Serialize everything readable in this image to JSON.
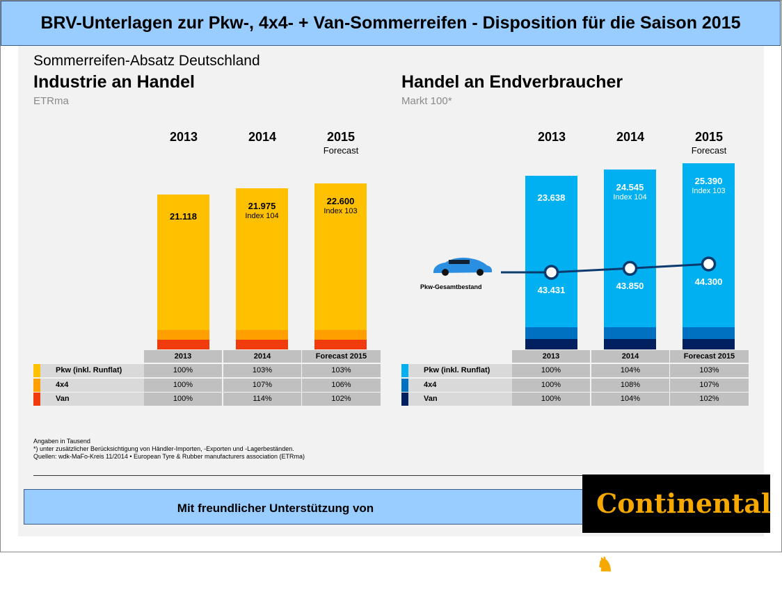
{
  "title": "BRV-Unterlagen zur Pkw-, 4x4- + Van-Sommerreifen - Disposition für die Saison 2015",
  "subtitle": "Sommerreifen-Absatz Deutschland",
  "colors": {
    "pkw_left": "#ffc000",
    "x4_left": "#ff9f00",
    "van_left": "#f03c0c",
    "pkw_right": "#00b0f0",
    "x4_right": "#0070c0",
    "van_right": "#002060",
    "line": "#0a3a6e"
  },
  "chart_data": [
    {
      "type": "bar",
      "title": "Industrie an Handel",
      "unit": "ETRma",
      "categories": [
        "2013",
        "2014",
        "2015"
      ],
      "category_notes": [
        "",
        "",
        "Forecast"
      ],
      "values": [
        21118,
        21975,
        22600
      ],
      "value_labels": [
        "21.118",
        "21.975",
        "22.600"
      ],
      "index_labels": [
        "",
        "Index 104",
        "Index 103"
      ],
      "table": {
        "headers": [
          "2013",
          "2014",
          "Forecast 2015"
        ],
        "rows": [
          {
            "label": "Pkw (inkl. Runflat)",
            "values": [
              "100%",
              "103%",
              "103%"
            ]
          },
          {
            "label": "4x4",
            "values": [
              "100%",
              "107%",
              "106%"
            ]
          },
          {
            "label": "Van",
            "values": [
              "100%",
              "114%",
              "102%"
            ]
          }
        ]
      }
    },
    {
      "type": "bar",
      "title": "Handel an Endverbraucher",
      "unit": "Markt 100*",
      "categories": [
        "2013",
        "2014",
        "2015"
      ],
      "category_notes": [
        "",
        "",
        "Forecast"
      ],
      "values": [
        23638,
        24545,
        25390
      ],
      "value_labels": [
        "23.638",
        "24.545",
        "25.390"
      ],
      "index_labels": [
        "",
        "Index 104",
        "Index 103"
      ],
      "line": {
        "name": "Pkw-Gesamtbestand",
        "type": "line",
        "values": [
          43431,
          43850,
          44300
        ],
        "value_labels": [
          "43.431",
          "43.850",
          "44.300"
        ]
      },
      "table": {
        "headers": [
          "2013",
          "2014",
          "Forecast 2015"
        ],
        "rows": [
          {
            "label": "Pkw (inkl. Runflat)",
            "values": [
              "100%",
              "104%",
              "103%"
            ]
          },
          {
            "label": "4x4",
            "values": [
              "100%",
              "108%",
              "107%"
            ]
          },
          {
            "label": "Van",
            "values": [
              "100%",
              "104%",
              "102%"
            ]
          }
        ]
      }
    }
  ],
  "notes": [
    "Angaben in Tausend",
    "*) unter zusätzlicher Berücksichtigung von Händler-Importen, -Exporten und -Lagerbeständen.",
    "Quellen: wdk-MaFo-Kreis 11/2014 • European Tyre & Rubber manufacturers association (ETRma)"
  ],
  "footer": "Mit freundlicher Unterstützung von",
  "logo_text": "Continental"
}
